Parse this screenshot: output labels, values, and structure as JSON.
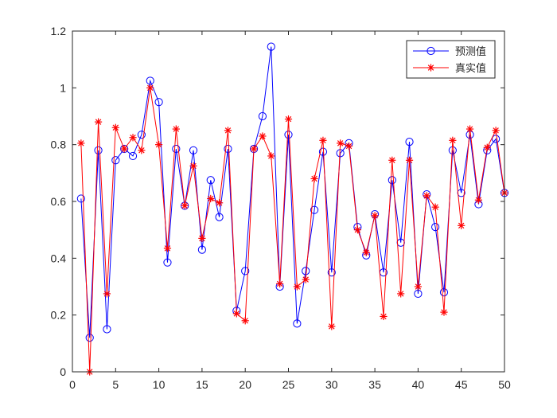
{
  "chart_data": {
    "type": "line",
    "title": "",
    "xlabel": "",
    "ylabel": "",
    "xlim": [
      0,
      50
    ],
    "ylim": [
      0,
      1.2
    ],
    "grid": false,
    "legend_position": "top-right",
    "x": [
      1,
      2,
      3,
      4,
      5,
      6,
      7,
      8,
      9,
      10,
      11,
      12,
      13,
      14,
      15,
      16,
      17,
      18,
      19,
      20,
      21,
      22,
      23,
      24,
      25,
      26,
      27,
      28,
      29,
      30,
      31,
      32,
      33,
      34,
      35,
      36,
      37,
      38,
      39,
      40,
      41,
      42,
      43,
      44,
      45,
      46,
      47,
      48,
      49,
      50
    ],
    "xticks": [
      0,
      5,
      10,
      15,
      20,
      25,
      30,
      35,
      40,
      45,
      50
    ],
    "xtick_labels": [
      "0",
      "5",
      "10",
      "15",
      "20",
      "25",
      "30",
      "35",
      "40",
      "45",
      "50"
    ],
    "yticks": [
      0,
      0.2,
      0.4,
      0.6,
      0.8,
      1,
      1.2
    ],
    "ytick_labels": [
      "0",
      "0.2",
      "0.4",
      "0.6",
      "0.8",
      "1",
      "1.2"
    ],
    "series": [
      {
        "name": "预测值",
        "color": "#0000ff",
        "marker": "circle",
        "values": [
          0.61,
          0.12,
          0.78,
          0.15,
          0.745,
          0.785,
          0.76,
          0.835,
          1.025,
          0.95,
          0.385,
          0.785,
          0.585,
          0.78,
          0.43,
          0.675,
          0.545,
          0.785,
          0.215,
          0.355,
          0.785,
          0.9,
          1.145,
          0.3,
          0.835,
          0.17,
          0.355,
          0.57,
          0.775,
          0.35,
          0.77,
          0.805,
          0.51,
          0.41,
          0.555,
          0.35,
          0.675,
          0.455,
          0.81,
          0.275,
          0.625,
          0.51,
          0.28,
          0.78,
          0.63,
          0.835,
          0.59,
          0.78,
          0.82,
          0.63
        ]
      },
      {
        "name": "真实值",
        "color": "#ff0000",
        "marker": "asterisk",
        "values": [
          0.805,
          0.0,
          0.88,
          0.275,
          0.86,
          0.785,
          0.825,
          0.78,
          1.0,
          0.8,
          0.435,
          0.855,
          0.585,
          0.725,
          0.47,
          0.61,
          0.595,
          0.85,
          0.205,
          0.18,
          0.785,
          0.83,
          0.76,
          0.31,
          0.89,
          0.3,
          0.325,
          0.68,
          0.815,
          0.16,
          0.805,
          0.795,
          0.5,
          0.42,
          0.55,
          0.195,
          0.745,
          0.275,
          0.745,
          0.3,
          0.62,
          0.58,
          0.21,
          0.815,
          0.515,
          0.855,
          0.605,
          0.79,
          0.85,
          0.63
        ]
      }
    ]
  }
}
